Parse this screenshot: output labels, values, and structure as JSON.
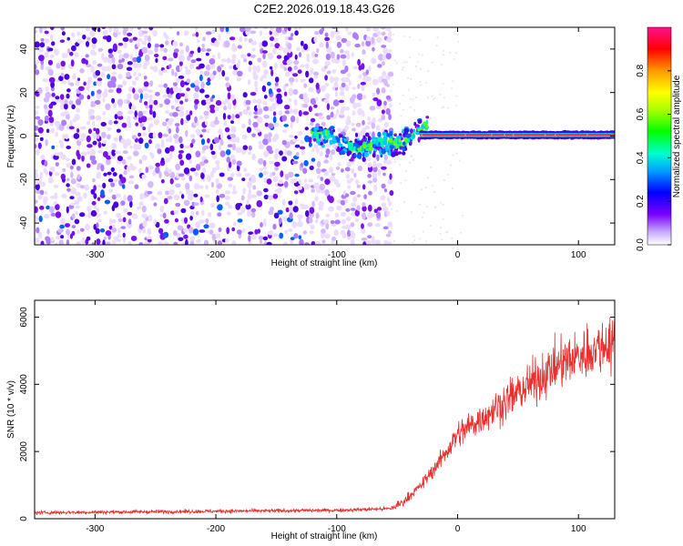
{
  "chart_data": [
    {
      "type": "heatmap",
      "title": "C2E2.2026.019.18.43.G26",
      "xlabel": "Height of straight line (km)",
      "ylabel": "Frequency (Hz)",
      "xlim": [
        -350,
        130
      ],
      "ylim": [
        -50,
        50
      ],
      "xticks": [
        "-300",
        "-200",
        "-100",
        "0",
        "100"
      ],
      "yticks": [
        "40",
        "20",
        "0",
        "-20",
        "-40"
      ],
      "colorbar": {
        "label": "Normalized spectral amplitude",
        "range": [
          0,
          1
        ],
        "ticks": [
          "0.0",
          "0.2",
          "0.4",
          "0.6",
          "0.8"
        ]
      },
      "features": {
        "noise_extent_km": [
          -350,
          -55
        ],
        "signal_onset_km": -120,
        "carrier_start_km": -30,
        "carrier_frequency_hz": 0.5
      }
    },
    {
      "type": "line",
      "xlabel": "Height of straight line (km)",
      "ylabel": "SNR (10 * v/v)",
      "xlim": [
        -350,
        130
      ],
      "ylim": [
        0,
        6500
      ],
      "xticks": [
        "-300",
        "-200",
        "-100",
        "0",
        "100"
      ],
      "yticks": [
        "0",
        "2000",
        "4000",
        "6000"
      ],
      "color": "#e8302e",
      "profile": {
        "x": [
          -350,
          -100,
          -55,
          -45,
          -30,
          -15,
          0,
          40,
          80,
          110,
          130
        ],
        "y": [
          180,
          250,
          300,
          500,
          1000,
          1700,
          2500,
          3500,
          4500,
          5000,
          5300
        ]
      }
    }
  ]
}
